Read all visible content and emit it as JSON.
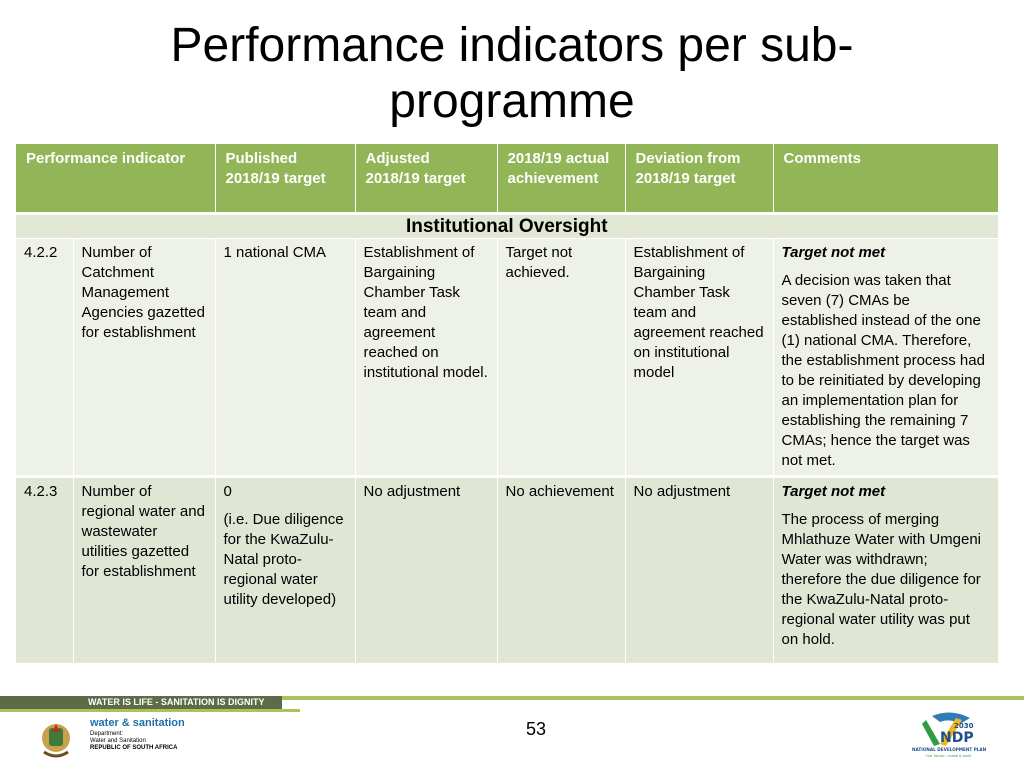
{
  "title": {
    "line1": "Performance indicators per sub-",
    "line2": "programme"
  },
  "table": {
    "headers": [
      "Performance indicator",
      "Published 2018/19 target",
      "Adjusted 2018/19 target",
      "2018/19 actual achievement",
      "Deviation from 2018/19 target",
      "Comments"
    ],
    "section": "Institutional Oversight",
    "rows": [
      {
        "id": "4.2.2",
        "indicator": "Number of Catchment Management Agencies gazetted for establishment",
        "published_target": "1 national CMA",
        "published_note": "",
        "adjusted_target": "Establishment of Bargaining Chamber Task team and agreement reached on institutional model.",
        "actual": "Target not achieved.",
        "deviation": "Establishment of Bargaining Chamber Task team and agreement reached on institutional model",
        "comment_status": "Target not met",
        "comment_text": "A decision was taken that seven (7) CMAs be established instead of the one (1) national CMA. Therefore, the establishment process had to be reinitiated by developing an implementation plan for establishing the remaining 7 CMAs; hence the target was not met."
      },
      {
        "id": "4.2.3",
        "indicator": "Number of regional water and wastewater utilities gazetted for establishment",
        "published_target": "0",
        "published_note": "(i.e. Due diligence for the KwaZulu-Natal proto-regional water utility developed)",
        "adjusted_target": "No adjustment",
        "actual": "No achievement",
        "deviation": "No adjustment",
        "comment_status": "Target not met",
        "comment_text": "The process of merging Mhlathuze Water with Umgeni Water was withdrawn; therefore the due diligence for the KwaZulu-Natal proto-regional water utility was put on hold."
      }
    ]
  },
  "footer": {
    "slogan": "WATER IS LIFE - SANITATION IS DIGNITY",
    "page_number": "53",
    "dept_brand": "water & sanitation",
    "dept_line1": "Department:",
    "dept_line2": "Water and Sanitation",
    "dept_line3": "REPUBLIC OF SOUTH AFRICA",
    "ndp_year": "2030",
    "ndp_name": "NDP",
    "ndp_full": "NATIONAL DEVELOPMENT PLAN",
    "ndp_tagline": "Our future - make it work"
  },
  "colors": {
    "header_green": "#92b557",
    "row_light": "#eef1e8",
    "row_alt": "#dfe6d4",
    "footer_dark": "#5d6c46",
    "footer_accent": "#a9c45a"
  }
}
